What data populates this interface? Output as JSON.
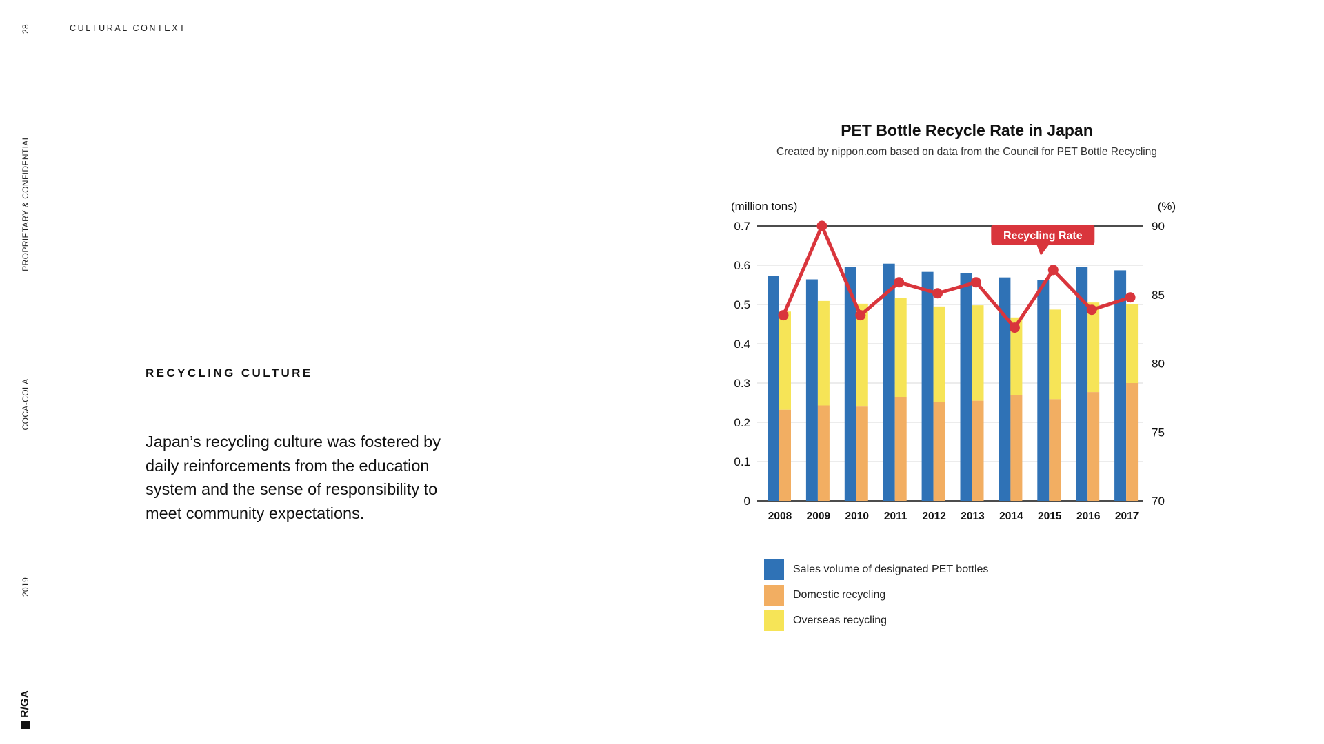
{
  "sidebar": {
    "page_number": "28",
    "confidential": "PROPRIETARY & CONFIDENTIAL",
    "client": "COCA-COLA",
    "year": "2019",
    "logo": "R/GA"
  },
  "header": {
    "section": "CULTURAL CONTEXT"
  },
  "main": {
    "subheading": "RECYCLING CULTURE",
    "body": "Japan’s recycling culture was fostered by daily reinforcements from the education system and the sense of responsibility to meet community expectations."
  },
  "chart_data": {
    "type": "bar",
    "title": "PET Bottle Recycle Rate in Japan",
    "subtitle": "Created by nippon.com based on data from the Council for PET Bottle Recycling",
    "ylabel": "(million tons)",
    "y2label": "(%)",
    "categories": [
      "2008",
      "2009",
      "2010",
      "2011",
      "2012",
      "2013",
      "2014",
      "2015",
      "2016",
      "2017"
    ],
    "ylim": [
      0,
      0.7
    ],
    "y2lim": [
      70,
      90
    ],
    "yticks": [
      "0",
      "0.1",
      "0.2",
      "0.3",
      "0.4",
      "0.5",
      "0.6",
      "0.7"
    ],
    "y2ticks": [
      "70",
      "75",
      "80",
      "85",
      "90"
    ],
    "grid": true,
    "series": [
      {
        "name": "Sales volume of designated PET bottles",
        "kind": "bar",
        "color": "#2f72b6",
        "values": [
          0.573,
          0.564,
          0.595,
          0.604,
          0.583,
          0.579,
          0.569,
          0.563,
          0.596,
          0.587
        ]
      },
      {
        "name": "Domestic recycling",
        "kind": "stacked-bar",
        "color": "#f2ae62",
        "values": [
          0.232,
          0.243,
          0.24,
          0.264,
          0.252,
          0.255,
          0.27,
          0.259,
          0.277,
          0.3
        ]
      },
      {
        "name": "Overseas recycling",
        "kind": "stacked-bar",
        "color": "#f6e457",
        "values": [
          0.25,
          0.266,
          0.262,
          0.252,
          0.243,
          0.243,
          0.197,
          0.228,
          0.228,
          0.201
        ]
      },
      {
        "name": "Recycling Rate",
        "kind": "line",
        "axis": "right",
        "color": "#d9353c",
        "values": [
          83.5,
          90.0,
          83.5,
          85.9,
          85.1,
          85.9,
          82.6,
          86.8,
          83.9,
          84.8
        ]
      }
    ],
    "annotation": {
      "text": "Recycling Rate",
      "point_index": 7
    },
    "legend_position": "bottom-left"
  }
}
